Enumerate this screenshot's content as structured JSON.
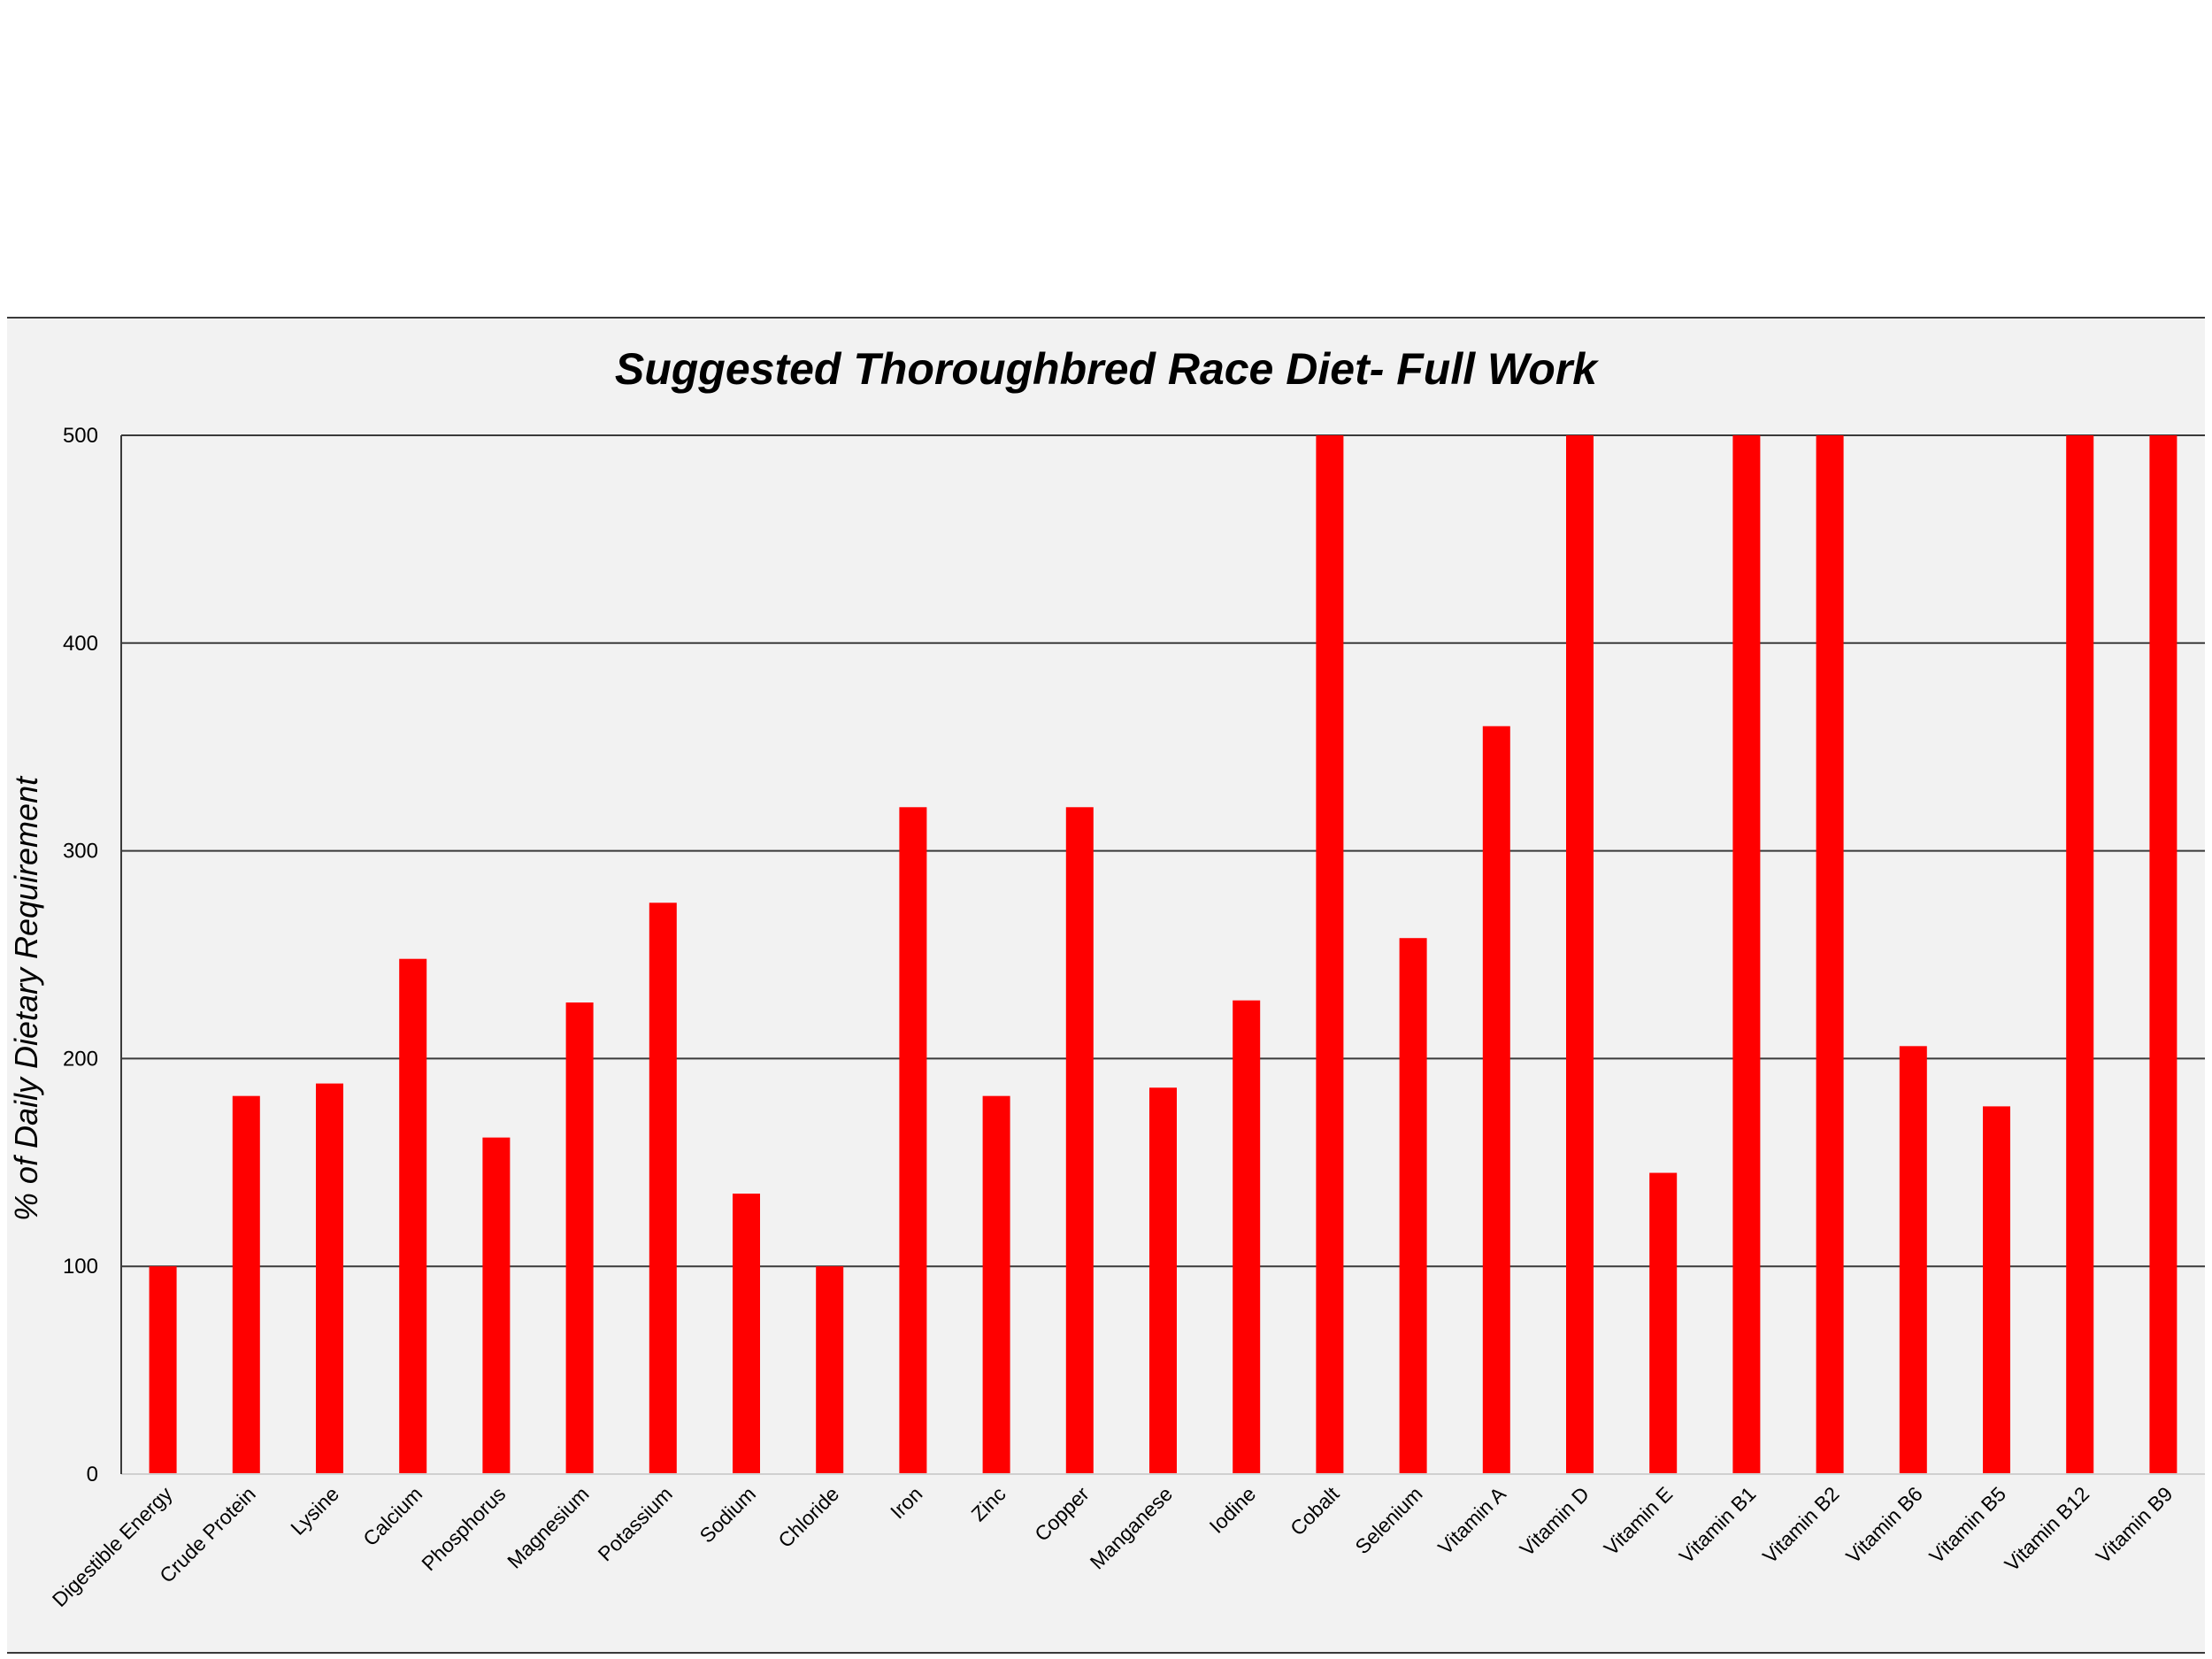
{
  "chart_data": {
    "type": "bar",
    "title": "Suggested Thoroughbred Race Diet- Full Work",
    "xlabel": "",
    "ylabel": "% of Daily Dietary Requirement",
    "ylim": [
      0,
      500
    ],
    "yticks": [
      0,
      100,
      200,
      300,
      400,
      500
    ],
    "grid": true,
    "legend": "none",
    "bar_color": "#ff0000",
    "categories": [
      "Digestible Energy",
      "Crude Protein",
      "Lysine",
      "Calcium",
      "Phosphorus",
      "Magnesium",
      "Potassium",
      "Sodium",
      "Chloride",
      "Iron",
      "Zinc",
      "Copper",
      "Manganese",
      "Iodine",
      "Cobalt",
      "Selenium",
      "Vitamin A",
      "Vitamin D",
      "Vitamin E",
      "Vitamin B1",
      "Vitamin B2",
      "Vitamin B6",
      "Vitamin B5",
      "Vitamin B12",
      "Vitamin B9"
    ],
    "values": [
      100,
      182,
      188,
      248,
      162,
      227,
      275,
      135,
      100,
      321,
      182,
      321,
      186,
      228,
      500,
      258,
      360,
      500,
      145,
      500,
      500,
      206,
      177,
      500,
      500
    ]
  }
}
